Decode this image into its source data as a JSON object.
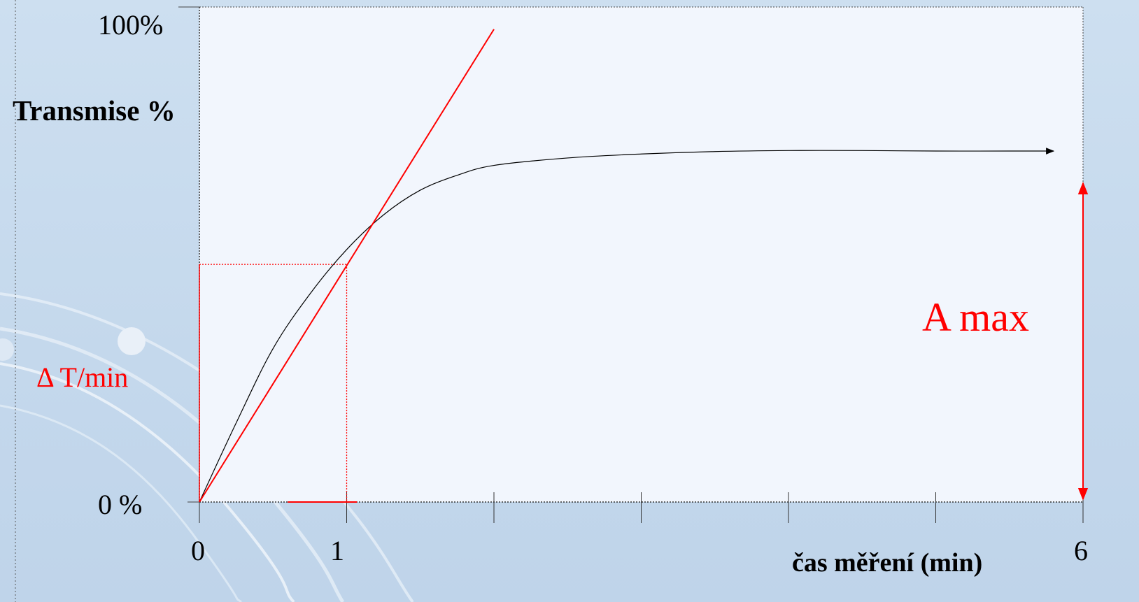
{
  "chart_data": {
    "type": "line",
    "y_tick_top": "100%",
    "y_tick_bottom": "0 %",
    "ylabel": "Transmise %",
    "xlabel": "čas měření (min)",
    "x_ticks": [
      {
        "value": 0,
        "label": "0"
      },
      {
        "value": 1,
        "label": "1"
      },
      {
        "value": 2,
        "label": ""
      },
      {
        "value": 3,
        "label": ""
      },
      {
        "value": 4,
        "label": ""
      },
      {
        "value": 5,
        "label": ""
      },
      {
        "value": 6,
        "label": "6"
      }
    ],
    "xlim": [
      0,
      6
    ],
    "ylim": [
      0,
      100
    ],
    "series": [
      {
        "color": "#000000",
        "x": [
          0,
          0.25,
          0.5,
          0.75,
          1.0,
          1.25,
          1.5,
          1.75,
          2.0,
          2.5,
          3.0,
          3.5,
          4.0,
          4.5,
          5.0,
          5.5,
          5.8
        ],
        "y": [
          0,
          16,
          31,
          42,
          51,
          58,
          63,
          66,
          68,
          69.5,
          70.3,
          70.8,
          71,
          71,
          70.9,
          70.9,
          70.9
        ]
      },
      {
        "color": "#ff0000",
        "x": [
          0,
          2
        ],
        "y": [
          0,
          95.5
        ]
      }
    ],
    "annotations": {
      "slope_label": "Δ T/min",
      "slope_box": {
        "x": 1,
        "y": 48
      },
      "amax_label": "A max",
      "amax_value": 65,
      "amax_x": 6
    },
    "grid": false,
    "colors": {
      "curve": "#000000",
      "annotation": "#ff0000",
      "plot_bg": "#f2f6fd"
    }
  }
}
